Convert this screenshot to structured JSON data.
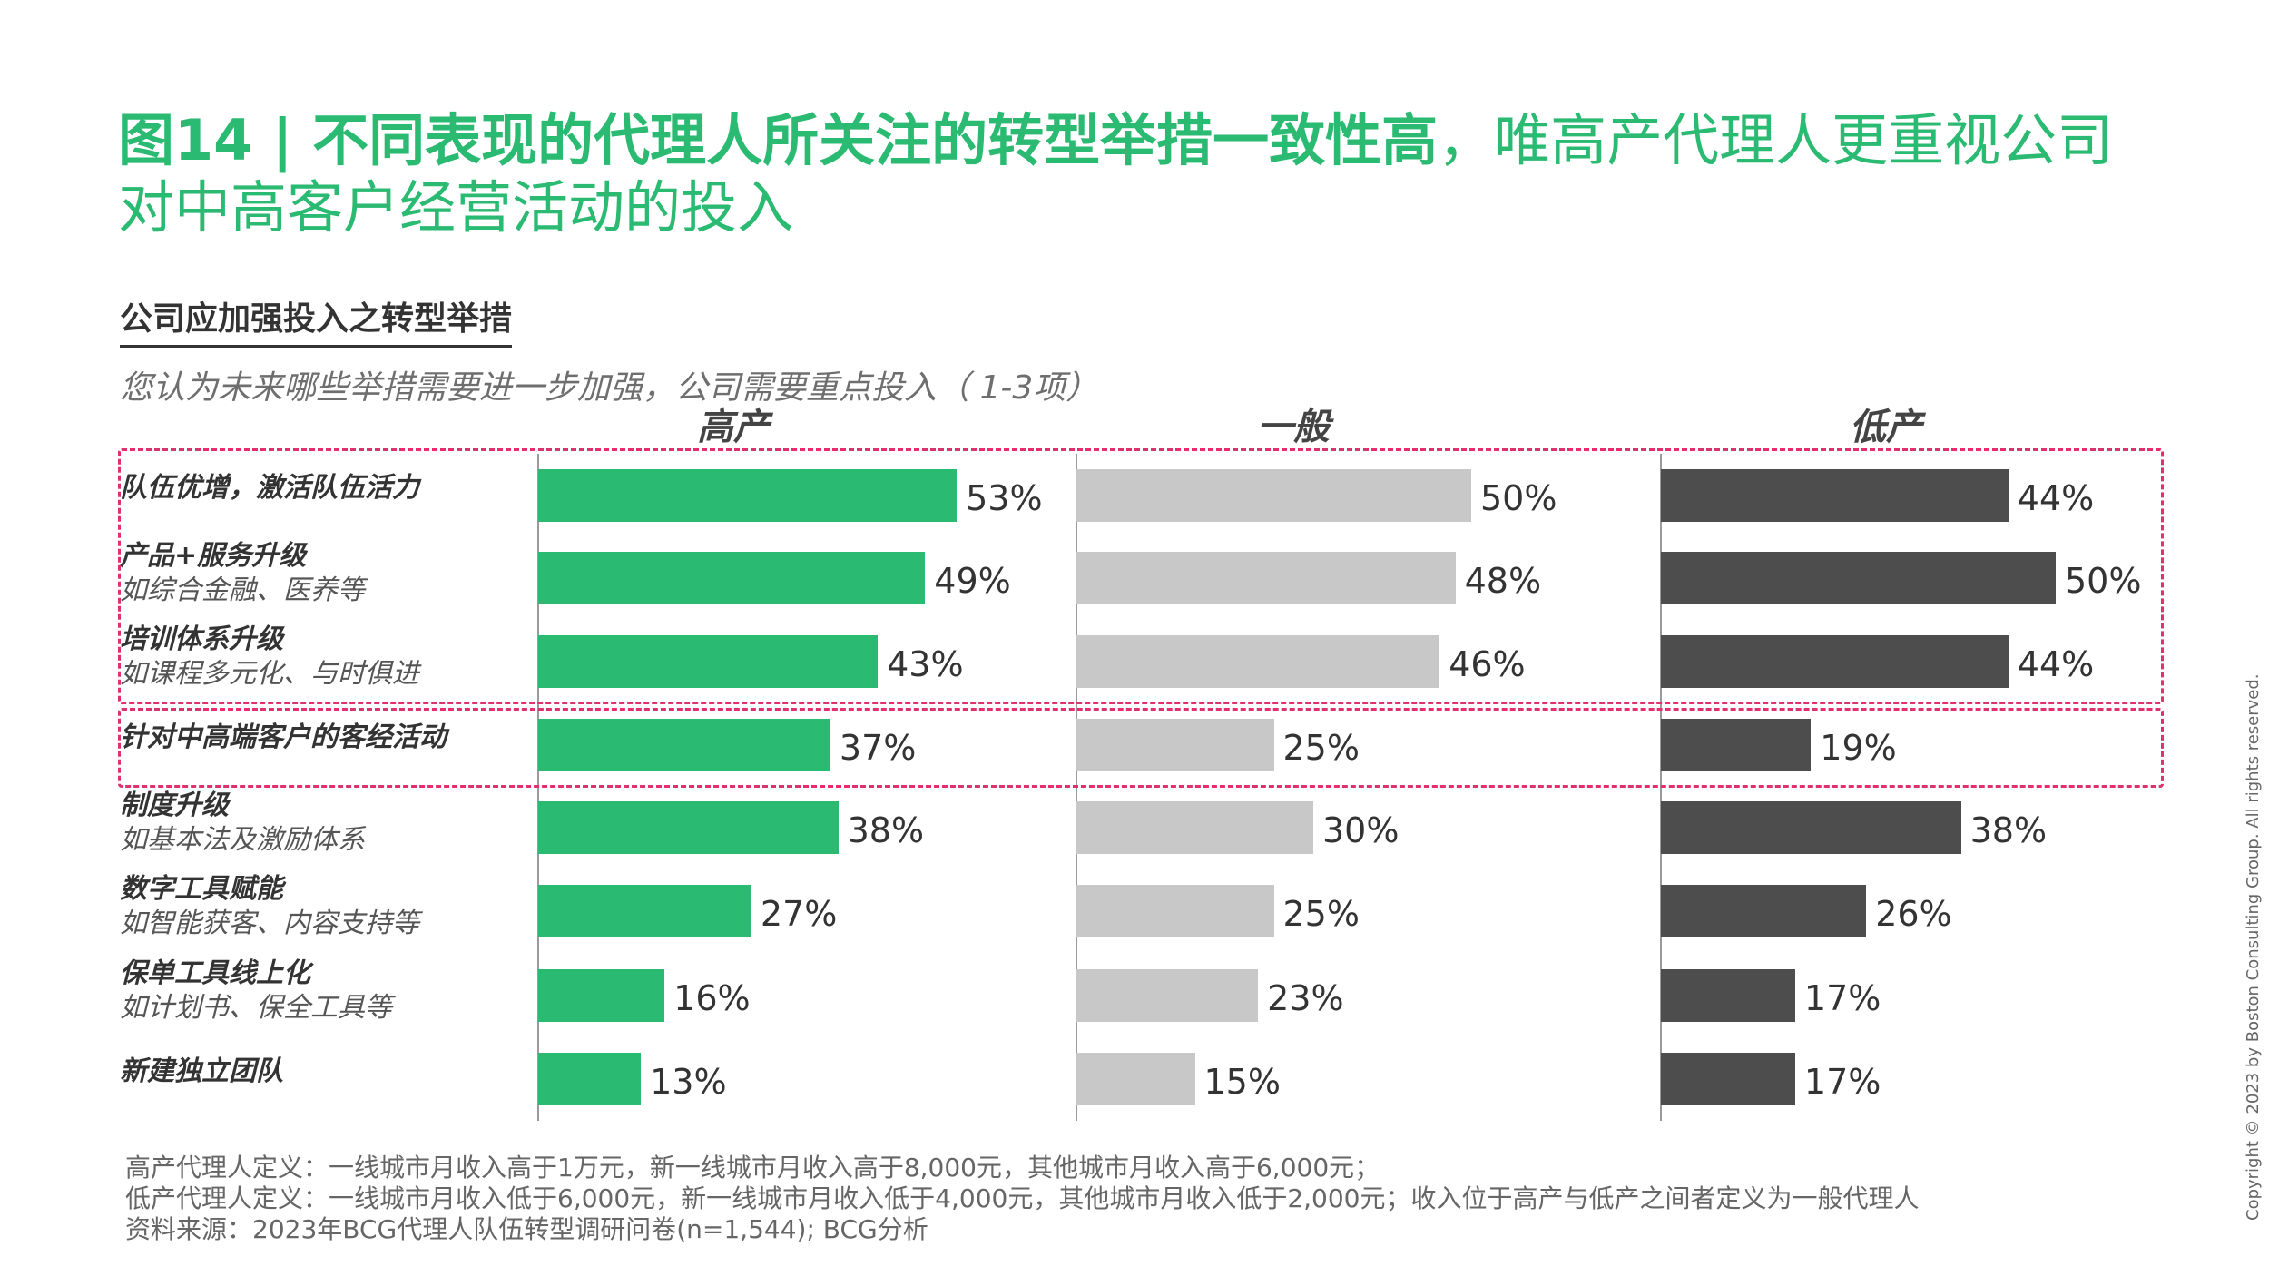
{
  "title": {
    "bold_part": "图14 | 不同表现的代理人所关注的转型举措一致性高",
    "normal_part": "，唯高产代理人更重视公司对中高客户经营活动的投入"
  },
  "subtitle": "公司应加强投入之转型举措",
  "question": "您认为未来哪些举措需要进一步加强，公司需要重点投入（   1-3项）",
  "colors": {
    "title": "#2aba72",
    "high": "#2aba72",
    "medium": "#c8c8c8",
    "low": "#4d4d4d",
    "highlight": "#e0306e"
  },
  "chart_data": {
    "type": "bar",
    "orientation": "horizontal",
    "categories": [
      {
        "name": "队伍优增，激活队伍活力",
        "sub": ""
      },
      {
        "name": "产品+服务升级",
        "sub": "如综合金融、医养等"
      },
      {
        "name": "培训体系升级",
        "sub": "如课程多元化、与时俱进"
      },
      {
        "name": "针对中高端客户的客经活动",
        "sub": ""
      },
      {
        "name": "制度升级",
        "sub": "如基本法及激励体系"
      },
      {
        "name": "数字工具赋能",
        "sub": "如智能获客、内容支持等"
      },
      {
        "name": "保单工具线上化",
        "sub": "如计划书、保全工具等"
      },
      {
        "name": "新建独立团队",
        "sub": ""
      }
    ],
    "series": [
      {
        "name": "高产",
        "values": [
          53,
          49,
          43,
          37,
          38,
          27,
          16,
          13
        ]
      },
      {
        "name": "一般",
        "values": [
          50,
          48,
          46,
          25,
          30,
          25,
          23,
          15
        ]
      },
      {
        "name": "低产",
        "values": [
          44,
          50,
          44,
          19,
          38,
          26,
          17,
          17
        ]
      }
    ],
    "value_suffix": "%",
    "highlight_groups": [
      [
        0,
        1,
        2
      ],
      [
        3
      ]
    ]
  },
  "footnotes": [
    "高产代理人定义：一线城市月收入高于1万元，新一线城市月收入高于8,000元，其他城市月收入高于6,000元；",
    "低产代理人定义：一线城市月收入低于6,000元，新一线城市月收入低于4,000元，其他城市月收入低于2,000元；收入位于高产与低产之间者定义为一般代理人",
    "资料来源：2023年BCG代理人队伍转型调研问卷(n=1,544); BCG分析"
  ],
  "copyright": "Copyright © 2023 by Boston Consulting Group. All rights reserved."
}
